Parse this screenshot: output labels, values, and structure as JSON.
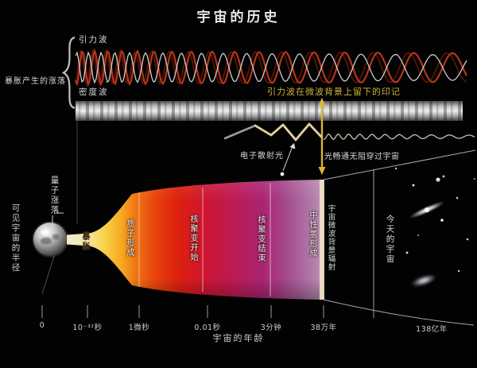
{
  "title": "宇宙的历史",
  "waves_section": {
    "brace_label": "暴胀产生的涨落",
    "gravitational_waves_label": "引力波",
    "density_waves_label": "密度波",
    "cmb_signal_label": "引力波在微波背景上留下的印记"
  },
  "light_path": {
    "electron_scatter_label": "电子散射光",
    "free_light_label": "光畅通无阻穿过宇宙"
  },
  "cone": {
    "quantum_fluctuations_label": "量子涨落",
    "inflation_label": "暴胀",
    "epoch_labels": [
      "质子形成",
      "核聚变开始",
      "核聚变结束",
      "中性氢形成"
    ],
    "cmb_label": "宇宙微波背景辐射",
    "today_label": "今天的宇宙"
  },
  "axes": {
    "y_label": "可见宇宙的半径",
    "x_label": "宇宙的年龄",
    "ticks": [
      "0",
      "10⁻³²秒",
      "1微秒",
      "0.01秒",
      "3分钟",
      "38万年",
      "138亿年"
    ]
  },
  "colors": {
    "background": "#020202",
    "gravitational_wave_red": "#b5351a",
    "signal_arrow_gold": "#dcb33c",
    "cone_yellow": "#f8d44e",
    "cone_red": "#dc200e",
    "cone_magenta": "#aa2472",
    "cone_mauve": "#a9659d"
  }
}
